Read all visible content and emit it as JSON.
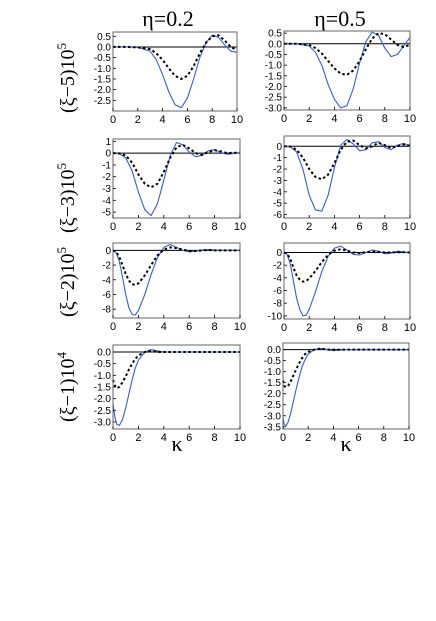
{
  "figure": {
    "column_titles": [
      "η=0.2",
      "η=0.5"
    ],
    "row_labels": [
      "(ξ−5)10",
      "(ξ−3)10",
      "(ξ−2)10",
      "(ξ−1)10"
    ],
    "row_label_exponents": [
      "5",
      "5",
      "5",
      "4"
    ],
    "xlabel": "κ",
    "colors": {
      "blue": "#3a5bd9",
      "black": "#000000",
      "frame": "#666666"
    }
  },
  "chart_data": [
    {
      "type": "line",
      "title": "η=0.2",
      "ylabel": "(ξ−5)10^5",
      "xlabel": "",
      "xlim": [
        0,
        10
      ],
      "ylim": [
        -3.0,
        0.7
      ],
      "xticks": [
        0,
        2,
        4,
        6,
        8,
        10
      ],
      "yticks": [
        0.5,
        0.0,
        -0.5,
        -1.0,
        -1.5,
        -2.0,
        -2.5
      ],
      "ytick_labels": [
        "0.5",
        "0.0",
        "-0.5",
        "-1.0",
        "-1.5",
        "-2.0",
        "-2.5"
      ],
      "series": [
        {
          "color": "blue",
          "dash": "solid",
          "x": [
            0,
            1,
            2,
            3,
            3.5,
            4,
            4.5,
            5,
            5.5,
            6,
            6.5,
            7,
            7.5,
            8,
            8.5,
            9,
            9.5,
            10
          ],
          "y": [
            0,
            0,
            -0.02,
            -0.2,
            -0.6,
            -1.3,
            -2.1,
            -2.7,
            -2.85,
            -2.4,
            -1.5,
            -0.5,
            0.2,
            0.55,
            0.45,
            0.1,
            -0.2,
            -0.25
          ]
        },
        {
          "color": "black",
          "dash": "dotted",
          "x": [
            0,
            1,
            2,
            3,
            3.5,
            4,
            4.5,
            5,
            5.5,
            6,
            6.5,
            7,
            7.5,
            8,
            8.5,
            9,
            9.5,
            10
          ],
          "y": [
            0,
            0,
            -0.02,
            -0.1,
            -0.3,
            -0.6,
            -1.0,
            -1.35,
            -1.5,
            -1.35,
            -0.9,
            -0.3,
            0.2,
            0.5,
            0.55,
            0.3,
            0.0,
            -0.15
          ]
        }
      ]
    },
    {
      "type": "line",
      "title": "η=0.5",
      "ylabel": "",
      "xlabel": "",
      "xlim": [
        0,
        10
      ],
      "ylim": [
        -3.1,
        0.6
      ],
      "xticks": [
        0,
        2,
        4,
        6,
        8,
        10
      ],
      "yticks": [
        0.5,
        0.0,
        -0.5,
        -1.0,
        -1.5,
        -2.0,
        -2.5,
        -3.0
      ],
      "ytick_labels": [
        "0.5",
        "0.0",
        "-0.5",
        "-1.0",
        "-1.5",
        "-2.0",
        "-2.5",
        "-3.0"
      ],
      "series": [
        {
          "color": "blue",
          "dash": "solid",
          "x": [
            0,
            1,
            2,
            2.5,
            3,
            3.5,
            4,
            4.5,
            5,
            5.5,
            6,
            6.5,
            7,
            7.5,
            8,
            8.5,
            9,
            9.5,
            10
          ],
          "y": [
            0,
            0,
            -0.1,
            -0.4,
            -1.0,
            -1.9,
            -2.6,
            -3.0,
            -2.9,
            -2.1,
            -0.9,
            0.1,
            0.55,
            0.4,
            -0.2,
            -0.6,
            -0.5,
            -0.1,
            0.3
          ]
        },
        {
          "color": "black",
          "dash": "dotted",
          "x": [
            0,
            1,
            2,
            2.5,
            3,
            3.5,
            4,
            4.5,
            5,
            5.5,
            6,
            6.5,
            7,
            7.5,
            8,
            8.5,
            9,
            9.5,
            10
          ],
          "y": [
            0,
            0,
            -0.05,
            -0.2,
            -0.45,
            -0.8,
            -1.15,
            -1.4,
            -1.45,
            -1.25,
            -0.8,
            -0.25,
            0.25,
            0.5,
            0.45,
            0.2,
            -0.05,
            -0.15,
            -0.05
          ]
        }
      ]
    },
    {
      "type": "line",
      "title": "",
      "ylabel": "(ξ−3)10^5",
      "xlabel": "",
      "xlim": [
        0,
        10
      ],
      "ylim": [
        -5.5,
        1.2
      ],
      "xticks": [
        0,
        2,
        4,
        6,
        8,
        10
      ],
      "yticks": [
        1,
        0,
        -1,
        -2,
        -3,
        -4,
        -5
      ],
      "ytick_labels": [
        "1",
        "0",
        "-1",
        "-2",
        "-3",
        "-4",
        "-5"
      ],
      "series": [
        {
          "color": "blue",
          "dash": "solid",
          "x": [
            0,
            0.5,
            1,
            1.5,
            2,
            2.5,
            3,
            3.5,
            4,
            4.5,
            5,
            5.5,
            6,
            6.5,
            7,
            7.5,
            8,
            8.5,
            9,
            10
          ],
          "y": [
            0,
            -0.05,
            -0.4,
            -1.5,
            -3.3,
            -4.8,
            -5.3,
            -4.3,
            -2.3,
            -0.2,
            0.9,
            0.7,
            0.1,
            -0.3,
            -0.2,
            0.2,
            0.3,
            0.05,
            -0.1,
            0.05
          ]
        },
        {
          "color": "black",
          "dash": "dotted",
          "x": [
            0,
            0.5,
            1,
            1.5,
            2,
            2.5,
            3,
            3.5,
            4,
            4.5,
            5,
            5.5,
            6,
            6.5,
            7,
            7.5,
            8,
            8.5,
            9,
            10
          ],
          "y": [
            0,
            -0.02,
            -0.2,
            -0.8,
            -1.8,
            -2.6,
            -2.9,
            -2.6,
            -1.6,
            -0.4,
            0.5,
            0.7,
            0.4,
            0.0,
            -0.15,
            0.1,
            0.25,
            0.15,
            0.0,
            0.05
          ]
        }
      ]
    },
    {
      "type": "line",
      "title": "",
      "ylabel": "",
      "xlabel": "",
      "xlim": [
        0,
        10
      ],
      "ylim": [
        -6.3,
        0.9
      ],
      "xticks": [
        0,
        2,
        4,
        6,
        8,
        10
      ],
      "yticks": [
        0,
        -1,
        -2,
        -3,
        -4,
        -5,
        -6
      ],
      "ytick_labels": [
        "0",
        "-1",
        "-2",
        "-3",
        "-4",
        "-5",
        "-6"
      ],
      "series": [
        {
          "color": "blue",
          "dash": "solid",
          "x": [
            0,
            0.5,
            1,
            1.5,
            2,
            2.5,
            3,
            3.5,
            4,
            4.5,
            5,
            5.5,
            6,
            6.5,
            7,
            7.5,
            8,
            8.5,
            9,
            9.5,
            10
          ],
          "y": [
            0,
            -0.05,
            -0.5,
            -2.0,
            -4.3,
            -5.6,
            -5.7,
            -4.3,
            -1.9,
            0.1,
            0.6,
            0.2,
            -0.4,
            -0.3,
            0.3,
            0.4,
            -0.1,
            -0.3,
            0.1,
            0.25,
            0.0
          ]
        },
        {
          "color": "black",
          "dash": "dotted",
          "x": [
            0,
            0.5,
            1,
            1.5,
            2,
            2.5,
            3,
            3.5,
            4,
            4.5,
            5,
            5.5,
            6,
            6.5,
            7,
            7.5,
            8,
            8.5,
            9,
            9.5,
            10
          ],
          "y": [
            0,
            -0.02,
            -0.3,
            -1.0,
            -2.0,
            -2.7,
            -2.9,
            -2.5,
            -1.5,
            -0.3,
            0.4,
            0.5,
            0.1,
            -0.2,
            0.0,
            0.3,
            0.1,
            -0.15,
            0.0,
            0.15,
            0.05
          ]
        }
      ]
    },
    {
      "type": "line",
      "title": "",
      "ylabel": "(ξ−2)10^5",
      "xlabel": "",
      "xlim": [
        0,
        10
      ],
      "ylim": [
        -9.2,
        1.0
      ],
      "xticks": [
        0,
        2,
        4,
        6,
        8,
        10
      ],
      "yticks": [
        0,
        -2,
        -4,
        -6,
        -8
      ],
      "ytick_labels": [
        "0",
        "-2",
        "-4",
        "-6",
        "-8"
      ],
      "series": [
        {
          "color": "blue",
          "dash": "solid",
          "x": [
            0,
            0.25,
            0.5,
            0.75,
            1,
            1.25,
            1.5,
            1.75,
            2,
            2.5,
            3,
            3.5,
            4,
            4.5,
            5,
            5.5,
            6,
            6.5,
            7,
            7.5,
            8,
            9,
            10
          ],
          "y": [
            0,
            -0.3,
            -1.5,
            -3.6,
            -6.0,
            -7.8,
            -8.7,
            -8.8,
            -8.2,
            -6.0,
            -3.3,
            -1.0,
            0.4,
            0.8,
            0.4,
            0.0,
            -0.2,
            -0.1,
            0.05,
            0.1,
            0.05,
            0.0,
            0.0
          ]
        },
        {
          "color": "black",
          "dash": "dotted",
          "x": [
            0,
            0.25,
            0.5,
            0.75,
            1,
            1.25,
            1.5,
            1.75,
            2,
            2.5,
            3,
            3.5,
            4,
            4.5,
            5,
            5.5,
            6,
            6.5,
            7,
            7.5,
            8,
            9,
            10
          ],
          "y": [
            0,
            -0.2,
            -0.9,
            -2.0,
            -3.2,
            -4.1,
            -4.6,
            -4.7,
            -4.5,
            -3.4,
            -2.0,
            -0.7,
            0.1,
            0.4,
            0.3,
            0.1,
            -0.1,
            -0.1,
            0.0,
            0.05,
            0.0,
            0.0,
            0.0
          ]
        }
      ]
    },
    {
      "type": "line",
      "title": "",
      "ylabel": "",
      "xlabel": "",
      "xlim": [
        0,
        10
      ],
      "ylim": [
        -10.5,
        1.5
      ],
      "xticks": [
        0,
        2,
        4,
        6,
        8,
        10
      ],
      "yticks": [
        0,
        -2,
        -4,
        -6,
        -8,
        -10
      ],
      "ytick_labels": [
        "0",
        "-2",
        "-4",
        "-6",
        "-8",
        "-10"
      ],
      "series": [
        {
          "color": "blue",
          "dash": "solid",
          "x": [
            0,
            0.25,
            0.5,
            0.75,
            1,
            1.25,
            1.5,
            1.75,
            2,
            2.5,
            3,
            3.5,
            4,
            4.5,
            5,
            5.5,
            6,
            6.5,
            7,
            7.5,
            8,
            8.5,
            9,
            9.5,
            10
          ],
          "y": [
            0,
            -0.3,
            -1.8,
            -4.5,
            -7.2,
            -9.0,
            -10.0,
            -9.9,
            -9.0,
            -6.2,
            -3.0,
            -0.6,
            0.7,
            1.0,
            0.4,
            -0.3,
            -0.4,
            0.0,
            0.4,
            0.2,
            -0.2,
            -0.1,
            0.2,
            0.1,
            -0.05
          ]
        },
        {
          "color": "black",
          "dash": "dotted",
          "x": [
            0,
            0.25,
            0.5,
            0.75,
            1,
            1.25,
            1.5,
            1.75,
            2,
            2.5,
            3,
            3.5,
            4,
            4.5,
            5,
            5.5,
            6,
            6.5,
            7,
            7.5,
            8,
            8.5,
            9,
            9.5,
            10
          ],
          "y": [
            0,
            -0.2,
            -1.0,
            -2.4,
            -3.6,
            -4.3,
            -4.6,
            -4.5,
            -4.1,
            -2.9,
            -1.5,
            -0.4,
            0.3,
            0.5,
            0.3,
            0.0,
            -0.1,
            0.05,
            0.15,
            0.1,
            0.0,
            0.0,
            0.05,
            0.05,
            0.0
          ]
        }
      ]
    },
    {
      "type": "line",
      "title": "",
      "ylabel": "(ξ−1)10^4",
      "xlabel": "κ",
      "xlim": [
        0,
        10
      ],
      "ylim": [
        -3.3,
        0.3
      ],
      "xticks": [
        0,
        2,
        4,
        6,
        8,
        10
      ],
      "yticks": [
        0.0,
        -0.5,
        -1.0,
        -1.5,
        -2.0,
        -2.5,
        -3.0
      ],
      "ytick_labels": [
        "0.0",
        "-0.5",
        "-1.0",
        "-1.5",
        "-2.0",
        "-2.5",
        "-3.0"
      ],
      "series": [
        {
          "color": "blue",
          "dash": "solid",
          "x": [
            0,
            0.15,
            0.3,
            0.5,
            0.75,
            1,
            1.25,
            1.5,
            1.75,
            2,
            2.5,
            3,
            3.5,
            4,
            5,
            6,
            7,
            8,
            9,
            10
          ],
          "y": [
            -2.2,
            -2.8,
            -3.1,
            -3.15,
            -2.9,
            -2.4,
            -1.8,
            -1.2,
            -0.7,
            -0.35,
            0.0,
            0.1,
            0.05,
            0.0,
            0.0,
            0.0,
            0.0,
            0.0,
            0.0,
            0.0
          ]
        },
        {
          "color": "black",
          "dash": "dotted",
          "x": [
            0,
            0.15,
            0.3,
            0.5,
            0.75,
            1,
            1.25,
            1.5,
            1.75,
            2,
            2.5,
            3,
            3.5,
            4,
            5,
            6,
            7,
            8,
            9,
            10
          ],
          "y": [
            -1.2,
            -1.45,
            -1.55,
            -1.5,
            -1.3,
            -1.05,
            -0.75,
            -0.5,
            -0.3,
            -0.15,
            0.0,
            0.05,
            0.0,
            0.0,
            0.0,
            0.0,
            0.0,
            0.0,
            0.0,
            0.0
          ]
        }
      ]
    },
    {
      "type": "line",
      "title": "",
      "ylabel": "",
      "xlabel": "κ",
      "xlim": [
        0,
        10
      ],
      "ylim": [
        -3.6,
        0.3
      ],
      "xticks": [
        0,
        2,
        4,
        6,
        8,
        10
      ],
      "yticks": [
        0.0,
        -0.5,
        -1.0,
        -1.5,
        -2.0,
        -2.5,
        -3.0,
        -3.5
      ],
      "ytick_labels": [
        "0.0",
        "-0.5",
        "-1.0",
        "-1.5",
        "-2.0",
        "-2.5",
        "-3.0",
        "-3.5"
      ],
      "series": [
        {
          "color": "blue",
          "dash": "solid",
          "x": [
            0,
            0.1,
            0.25,
            0.4,
            0.6,
            0.8,
            1,
            1.25,
            1.5,
            1.75,
            2,
            2.5,
            3,
            3.5,
            4,
            5,
            6,
            7,
            8,
            9,
            10
          ],
          "y": [
            -3.1,
            -3.4,
            -3.45,
            -3.3,
            -2.9,
            -2.4,
            -1.9,
            -1.3,
            -0.8,
            -0.45,
            -0.2,
            0.0,
            0.05,
            0.0,
            -0.05,
            0.0,
            0.0,
            0.0,
            0.0,
            0.0,
            0.0
          ]
        },
        {
          "color": "black",
          "dash": "dotted",
          "x": [
            0,
            0.1,
            0.25,
            0.4,
            0.6,
            0.8,
            1,
            1.25,
            1.5,
            1.75,
            2,
            2.5,
            3,
            3.5,
            4,
            5,
            6,
            7,
            8,
            9,
            10
          ],
          "y": [
            -1.4,
            -1.65,
            -1.7,
            -1.65,
            -1.45,
            -1.2,
            -0.95,
            -0.65,
            -0.4,
            -0.2,
            -0.1,
            0.0,
            0.05,
            0.0,
            0.0,
            0.0,
            0.0,
            0.0,
            0.0,
            0.0,
            0.0
          ]
        }
      ]
    }
  ]
}
